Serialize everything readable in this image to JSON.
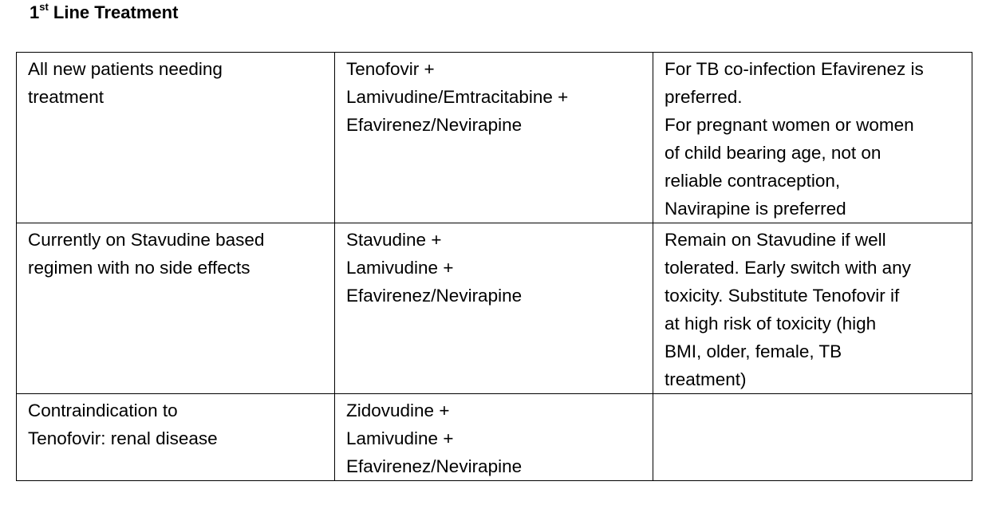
{
  "heading": {
    "number": "1",
    "superscript": "st",
    "rest": " Line Treatment"
  },
  "table": {
    "rows": [
      {
        "indication": "All new patients needing\ntreatment",
        "regimen": "Tenofovir +\nLamivudine/Emtracitabine +\nEfavirenez/Nevirapine",
        "notes": "For TB co-infection Efavirenez is\npreferred.\nFor pregnant women or women\nof child bearing age, not on\nreliable contraception,\nNavirapine is preferred"
      },
      {
        "indication": "Currently on  Stavudine based\nregimen with no side effects",
        "regimen": "Stavudine +\nLamivudine +\nEfavirenez/Nevirapine",
        "notes": "Remain on Stavudine if well\ntolerated. Early switch with any\ntoxicity. Substitute Tenofovir if\nat high risk of toxicity (high\nBMI, older, female, TB\ntreatment)"
      },
      {
        "indication": "Contraindication to\nTenofovir: renal disease",
        "regimen": "Zidovudine +\nLamivudine +\nEfavirenez/Nevirapine",
        "notes": ""
      }
    ]
  }
}
